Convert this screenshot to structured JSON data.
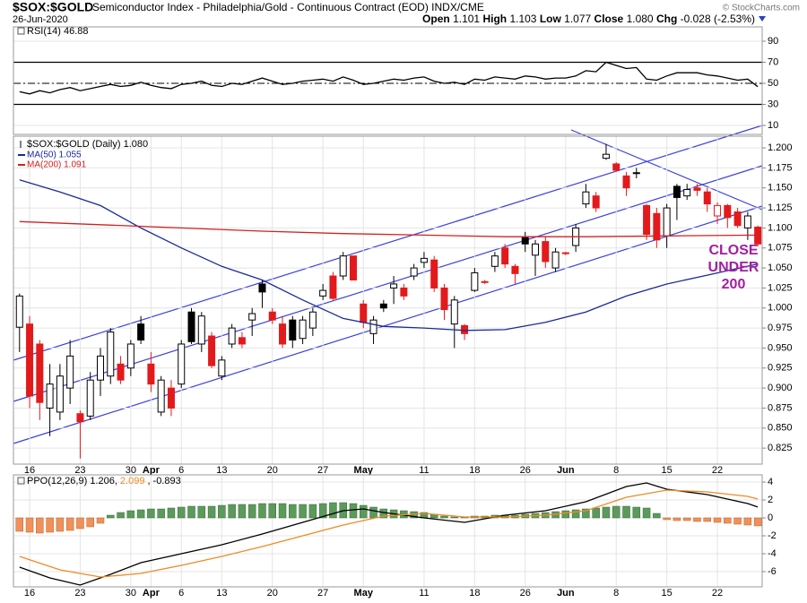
{
  "header": {
    "symbol": "$SOX:$GOLD",
    "description": "Semiconductor Index - Philadelphia/Gold - Continuous Contract (EOD) INDX/CME",
    "date": "26-Jun-2020",
    "credit": "© StockCharts.com",
    "quote": [
      {
        "label": "Open",
        "value": "1.101"
      },
      {
        "label": "High",
        "value": "1.103"
      },
      {
        "label": "Low",
        "value": "1.077"
      },
      {
        "label": "Close",
        "value": "1.080"
      },
      {
        "label": "Chg",
        "value": "-0.028 (-2.53%)"
      }
    ]
  },
  "chart_data": [
    {
      "type": "line",
      "label": "RSI(14) 46.88",
      "color": "#000000",
      "xlim": [
        -0.6,
        73.43
      ],
      "ylim": [
        1.5,
        103.6
      ],
      "yticks": [
        90,
        70,
        50,
        30,
        10
      ],
      "reference_lines": [
        {
          "value": 70,
          "style": "solid"
        },
        {
          "value": 50,
          "style": "dashdot"
        },
        {
          "value": 30,
          "style": "solid"
        }
      ],
      "x": [
        0,
        1,
        2,
        3,
        4,
        5,
        6,
        7,
        8,
        9,
        10,
        11,
        12,
        13,
        14,
        15,
        16,
        17,
        18,
        19,
        20,
        21,
        22,
        23,
        24,
        25,
        26,
        27,
        28,
        29,
        30,
        31,
        32,
        33,
        34,
        35,
        36,
        37,
        38,
        39,
        40,
        41,
        42,
        43,
        44,
        45,
        46,
        47,
        48,
        49,
        50,
        51,
        52,
        53,
        54,
        55,
        56,
        57,
        58,
        59,
        60,
        61,
        62,
        63,
        64,
        65,
        66,
        67,
        68,
        69,
        70,
        71,
        72,
        73
      ],
      "values": [
        42,
        40,
        43,
        41,
        44,
        46,
        43,
        45,
        47,
        49,
        47,
        48,
        51,
        48,
        46,
        45,
        49,
        50,
        52,
        48,
        47,
        50,
        49,
        52,
        55,
        52,
        49,
        50,
        52,
        53,
        54,
        52,
        56,
        53,
        49,
        50,
        52,
        54,
        53,
        55,
        56,
        52,
        50,
        51,
        49,
        54,
        53,
        56,
        55,
        54,
        57,
        56,
        54,
        55,
        55,
        57,
        62,
        61,
        70,
        67,
        64,
        65,
        54,
        53,
        57,
        60,
        60,
        60,
        58,
        57,
        55,
        53,
        54,
        46.88
      ]
    },
    {
      "type": "candlestick",
      "label": "$SOX:$GOLD (Daily) 1.080",
      "up_color": "#000000",
      "down_color": "#e31a1c",
      "grid": true,
      "xlim": [
        -0.6,
        73.43
      ],
      "ylim": [
        0.805,
        1.2146
      ],
      "yticks": [
        {
          "value": 1.2,
          "label": "1.200"
        },
        {
          "value": 1.175,
          "label": "1.175"
        },
        {
          "value": 1.15,
          "label": "1.150"
        },
        {
          "value": 1.125,
          "label": "1.125"
        },
        {
          "value": 1.1,
          "label": "1.100"
        },
        {
          "value": 1.075,
          "label": "1.075"
        },
        {
          "value": 1.05,
          "label": "1.050"
        },
        {
          "value": 1.025,
          "label": "1.025"
        },
        {
          "value": 1,
          "label": "1.000"
        },
        {
          "value": 0.975,
          "label": "0.975"
        },
        {
          "value": 0.95,
          "label": "0.950"
        },
        {
          "value": 0.925,
          "label": "0.925"
        },
        {
          "value": 0.9,
          "label": "0.900"
        },
        {
          "value": 0.875,
          "label": "0.875"
        },
        {
          "value": 0.85,
          "label": "0.850"
        },
        {
          "value": 0.825,
          "label": "0.825"
        }
      ],
      "xticks": [
        {
          "value": 1,
          "label": "16"
        },
        {
          "value": 6,
          "label": "23"
        },
        {
          "value": 11,
          "label": "30"
        },
        {
          "value": 13,
          "label": "Apr"
        },
        {
          "value": 16,
          "label": "6"
        },
        {
          "value": 20,
          "label": "13"
        },
        {
          "value": 25,
          "label": "20"
        },
        {
          "value": 30,
          "label": "27"
        },
        {
          "value": 34,
          "label": "May"
        },
        {
          "value": 40,
          "label": "11"
        },
        {
          "value": 45,
          "label": "18"
        },
        {
          "value": 50,
          "label": "26"
        },
        {
          "value": 54,
          "label": "Jun"
        },
        {
          "value": 59,
          "label": "8"
        },
        {
          "value": 64,
          "label": "15"
        },
        {
          "value": 69,
          "label": "22"
        }
      ],
      "open": [
        0.976,
        0.98,
        0.955,
        0.875,
        0.87,
        0.9,
        0.868,
        0.865,
        0.91,
        0.915,
        0.93,
        0.925,
        0.98,
        0.93,
        0.87,
        0.9,
        0.905,
        0.995,
        0.955,
        0.965,
        0.915,
        0.955,
        0.963,
        0.985,
        1.03,
        0.995,
        0.98,
        0.985,
        0.962,
        0.975,
        1.015,
        1.04,
        1.04,
        1.065,
        1.005,
        0.968,
        1.005,
        1.025,
        1.025,
        1.04,
        1.057,
        1.06,
        1.025,
        0.98,
        0.978,
        1.022,
        1.033,
        1.052,
        1.075,
        1.052,
        1.088,
        1.066,
        1.083,
        1.05,
        1.069,
        1.078,
        1.13,
        1.14,
        1.187,
        1.18,
        1.165,
        1.169,
        1.128,
        1.118,
        1.09,
        1.152,
        1.14,
        1.15,
        1.145,
        1.115,
        1.128,
        1.12,
        1.1,
        1.101
      ],
      "high": [
        1.018,
        0.99,
        0.96,
        0.93,
        0.93,
        0.96,
        0.872,
        0.92,
        0.95,
        0.975,
        0.94,
        0.96,
        0.99,
        0.945,
        0.915,
        0.91,
        0.96,
        1.0,
        0.995,
        0.97,
        0.94,
        0.98,
        0.97,
        1.0,
        1.035,
        1.0,
        0.99,
        0.99,
        0.99,
        1.0,
        1.03,
        1.045,
        1.07,
        1.065,
        1.01,
        0.99,
        1.01,
        1.04,
        1.03,
        1.055,
        1.07,
        1.065,
        1.03,
        1.015,
        0.98,
        1.05,
        1.035,
        1.07,
        1.08,
        1.055,
        1.095,
        1.085,
        1.09,
        1.075,
        1.07,
        1.105,
        1.155,
        1.145,
        1.205,
        1.182,
        1.17,
        1.175,
        1.13,
        1.125,
        1.13,
        1.155,
        1.155,
        1.155,
        1.15,
        1.132,
        1.13,
        1.125,
        1.12,
        1.103
      ],
      "low": [
        0.945,
        0.875,
        0.86,
        0.84,
        0.86,
        0.88,
        0.812,
        0.86,
        0.89,
        0.905,
        0.905,
        0.915,
        0.955,
        0.895,
        0.865,
        0.865,
        0.9,
        0.955,
        0.945,
        0.925,
        0.91,
        0.95,
        0.95,
        0.965,
        1.0,
        0.98,
        0.95,
        0.95,
        0.955,
        0.965,
        1.01,
        1.01,
        1.035,
        1.035,
        0.975,
        0.955,
        0.995,
        1.005,
        1.01,
        1.035,
        1.05,
        1.02,
        0.985,
        0.95,
        0.96,
        1.02,
        1.03,
        1.045,
        1.05,
        1.03,
        1.07,
        1.04,
        1.05,
        1.045,
        1.066,
        1.07,
        1.125,
        1.12,
        1.185,
        1.17,
        1.14,
        1.162,
        1.085,
        1.075,
        1.075,
        1.11,
        1.135,
        1.14,
        1.12,
        1.105,
        1.1,
        1.1,
        1.085,
        1.077
      ],
      "close": [
        1.015,
        0.89,
        0.882,
        0.905,
        0.915,
        0.94,
        0.858,
        0.91,
        0.94,
        0.97,
        0.91,
        0.955,
        0.96,
        0.905,
        0.91,
        0.875,
        0.955,
        0.958,
        0.99,
        0.928,
        0.935,
        0.975,
        0.955,
        0.993,
        1.02,
        0.985,
        0.955,
        0.96,
        0.985,
        0.995,
        1.022,
        1.012,
        1.065,
        1.035,
        0.982,
        0.985,
        1.0,
        1.03,
        1.015,
        1.05,
        1.062,
        1.025,
        0.998,
        1.01,
        0.968,
        1.044,
        1.032,
        1.065,
        1.055,
        1.043,
        1.08,
        1.08,
        1.058,
        1.07,
        1.068,
        1.1,
        1.145,
        1.125,
        1.192,
        1.172,
        1.15,
        1.168,
        1.092,
        1.085,
        1.125,
        1.138,
        1.148,
        1.147,
        1.13,
        1.128,
        1.113,
        1.103,
        1.115,
        1.08
      ],
      "series": [
        {
          "name": "MA(50) 1.055",
          "color": "#1a2a9a",
          "x": [
            0,
            4,
            8,
            12,
            16,
            20,
            24,
            28,
            32,
            36,
            40,
            44,
            48,
            52,
            56,
            60,
            64,
            68,
            73
          ],
          "values": [
            1.16,
            1.145,
            1.128,
            1.1,
            1.075,
            1.052,
            1.035,
            1.01,
            0.987,
            0.977,
            0.975,
            0.972,
            0.973,
            0.982,
            0.995,
            1.015,
            1.03,
            1.041,
            1.055
          ]
        },
        {
          "name": "MA(200) 1.091",
          "color": "#d42020",
          "x": [
            0,
            8,
            16,
            24,
            32,
            40,
            48,
            56,
            64,
            73
          ],
          "values": [
            1.108,
            1.104,
            1.1,
            1.096,
            1.093,
            1.091,
            1.089,
            1.089,
            1.09,
            1.091
          ]
        }
      ],
      "annotation": {
        "lines": [
          "CLOSE",
          "UNDER",
          "200"
        ],
        "color": "#a020a0"
      }
    },
    {
      "type": "combo",
      "label_parts": [
        "PPO(12,26,9) 1.206,",
        "2.099",
        ", -0.893"
      ],
      "label_colors": [
        "#000000",
        "#f08a24",
        "#000000"
      ],
      "xlim": [
        -0.6,
        73.43
      ],
      "ylim": [
        -7.7,
        4.8
      ],
      "yticks": [
        4,
        2,
        0,
        -2,
        -4,
        -6
      ],
      "grid": true,
      "xticks": [
        {
          "value": 1,
          "label": "16"
        },
        {
          "value": 6,
          "label": "23"
        },
        {
          "value": 11,
          "label": "30"
        },
        {
          "value": 13,
          "label": "Apr"
        },
        {
          "value": 16,
          "label": "6"
        },
        {
          "value": 20,
          "label": "13"
        },
        {
          "value": 25,
          "label": "20"
        },
        {
          "value": 30,
          "label": "27"
        },
        {
          "value": 34,
          "label": "May"
        },
        {
          "value": 40,
          "label": "11"
        },
        {
          "value": 45,
          "label": "18"
        },
        {
          "value": 50,
          "label": "26"
        },
        {
          "value": 54,
          "label": "Jun"
        },
        {
          "value": 59,
          "label": "8"
        },
        {
          "value": 64,
          "label": "15"
        },
        {
          "value": 69,
          "label": "22"
        }
      ],
      "histogram": {
        "positive_color": "#5b9a5b",
        "negative_color": "#f0905a",
        "values": [
          -1.5,
          -1.6,
          -1.7,
          -1.6,
          -1.5,
          -1.4,
          -1.2,
          -1.0,
          -0.6,
          0.3,
          0.6,
          0.8,
          0.9,
          1.0,
          1.0,
          1.1,
          1.2,
          1.3,
          1.3,
          1.3,
          1.4,
          1.5,
          1.5,
          1.5,
          1.6,
          1.6,
          1.6,
          1.5,
          1.5,
          1.5,
          1.6,
          1.7,
          1.7,
          1.6,
          1.4,
          1.2,
          1.0,
          0.9,
          0.8,
          0.7,
          0.6,
          0.4,
          0.2,
          0.1,
          0.1,
          0.2,
          0.2,
          0.3,
          0.3,
          0.3,
          0.4,
          0.5,
          0.6,
          0.7,
          0.8,
          0.9,
          1.0,
          1.1,
          1.2,
          1.3,
          1.3,
          1.2,
          1.1,
          0.5,
          -0.2,
          -0.3,
          -0.3,
          -0.4,
          -0.4,
          -0.5,
          -0.6,
          -0.7,
          -0.8,
          -0.893
        ]
      },
      "series": [
        {
          "color": "#000000",
          "x": [
            0,
            3,
            6,
            9,
            12,
            16,
            20,
            24,
            28,
            32,
            34,
            36,
            40,
            44,
            48,
            52,
            56,
            60,
            62,
            64,
            68,
            72,
            73
          ],
          "values": [
            -5.5,
            -6.7,
            -7.5,
            -6.3,
            -5.0,
            -4.0,
            -3.0,
            -1.8,
            -0.5,
            0.8,
            1.0,
            0.6,
            0.0,
            -0.5,
            0.3,
            0.8,
            1.8,
            3.5,
            3.9,
            3.2,
            2.6,
            1.6,
            1.206
          ]
        },
        {
          "color": "#f08a24",
          "x": [
            0,
            4,
            8,
            12,
            16,
            20,
            24,
            28,
            32,
            36,
            40,
            44,
            48,
            52,
            56,
            60,
            64,
            68,
            72,
            73
          ],
          "values": [
            -4.3,
            -5.8,
            -6.6,
            -6.2,
            -5.3,
            -4.3,
            -3.2,
            -2.0,
            -0.8,
            0.2,
            0.5,
            0.1,
            0.1,
            0.3,
            0.8,
            2.3,
            3.1,
            2.9,
            2.4,
            2.099
          ]
        }
      ]
    }
  ]
}
